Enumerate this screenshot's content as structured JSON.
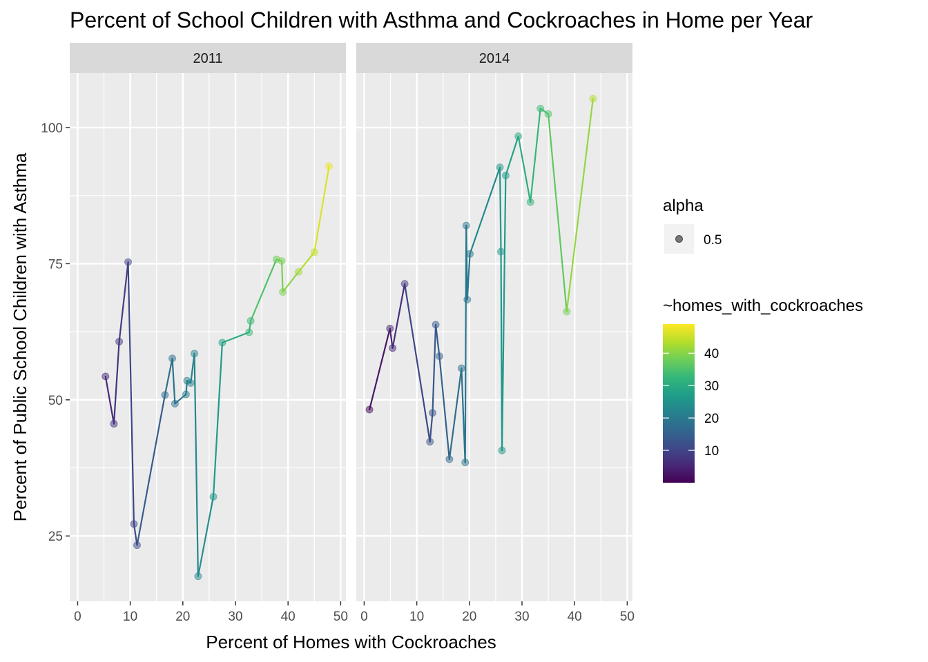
{
  "chart_data": {
    "type": "line",
    "title": "Percent of School Children with Asthma and Cockroaches in Home per Year",
    "xlabel": "Percent of Homes with Cockroaches",
    "ylabel": "Percent of Public School Children with Asthma",
    "xlim": [
      -1.5,
      51
    ],
    "ylim": [
      13,
      110
    ],
    "x_ticks": [
      0,
      10,
      20,
      30,
      40,
      50
    ],
    "y_ticks": [
      25,
      50,
      75,
      100
    ],
    "grid": true,
    "facets": [
      {
        "label": "2011",
        "points": [
          [
            5.3,
            54.3
          ],
          [
            6.9,
            45.6
          ],
          [
            7.9,
            60.7
          ],
          [
            9.6,
            75.3
          ],
          [
            10.7,
            27.2
          ],
          [
            11.3,
            23.3
          ],
          [
            16.6,
            50.9
          ],
          [
            18.0,
            57.6
          ],
          [
            18.5,
            49.3
          ],
          [
            20.6,
            51.0
          ],
          [
            20.8,
            53.5
          ],
          [
            21.5,
            53.1
          ],
          [
            22.2,
            58.5
          ],
          [
            22.9,
            17.6
          ],
          [
            25.8,
            32.2
          ],
          [
            27.5,
            60.5
          ],
          [
            32.6,
            62.4
          ],
          [
            32.9,
            64.5
          ],
          [
            37.8,
            75.8
          ],
          [
            38.8,
            75.5
          ],
          [
            39.0,
            69.8
          ],
          [
            42.0,
            73.5
          ],
          [
            45.0,
            77.1
          ],
          [
            47.8,
            92.9
          ]
        ]
      },
      {
        "label": "2014",
        "points": [
          [
            1.0,
            48.2
          ],
          [
            4.9,
            63.1
          ],
          [
            5.4,
            59.5
          ],
          [
            7.7,
            71.3
          ],
          [
            12.5,
            42.3
          ],
          [
            13.0,
            47.6
          ],
          [
            13.6,
            63.8
          ],
          [
            14.3,
            58.0
          ],
          [
            16.2,
            39.1
          ],
          [
            18.5,
            55.8
          ],
          [
            19.2,
            38.5
          ],
          [
            19.4,
            82.0
          ],
          [
            19.6,
            68.4
          ],
          [
            20.1,
            76.8
          ],
          [
            25.8,
            92.7
          ],
          [
            26.0,
            77.2
          ],
          [
            26.2,
            40.7
          ],
          [
            26.9,
            91.2
          ],
          [
            29.3,
            98.4
          ],
          [
            31.6,
            86.3
          ],
          [
            33.5,
            103.5
          ],
          [
            35.0,
            102.5
          ],
          [
            38.5,
            66.2
          ],
          [
            43.5,
            105.3
          ]
        ]
      }
    ],
    "legend": {
      "alpha_title": "alpha",
      "alpha_value": "0.5",
      "color_title": "~homes_with_cockroaches",
      "color_ticks": [
        10,
        20,
        30,
        40
      ],
      "color_range": [
        0,
        49
      ]
    },
    "palette": [
      "#440154",
      "#482878",
      "#3e4a89",
      "#31688e",
      "#26828e",
      "#1f9e89",
      "#35b779",
      "#6ece58",
      "#b5de2b",
      "#fde725"
    ],
    "panel_bg": "#ebebeb",
    "strip_bg": "#d9d9d9"
  }
}
